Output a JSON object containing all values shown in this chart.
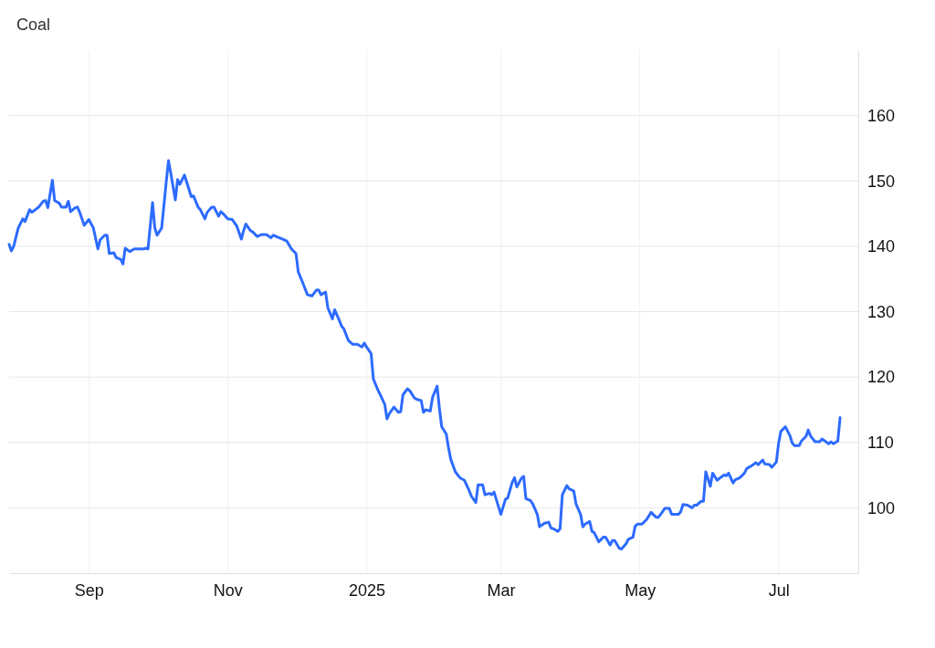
{
  "chart_data": {
    "type": "line",
    "title": "Coal",
    "x": [
      "2024-07-28",
      "2024-07-29",
      "2024-07-30",
      "2024-08-01",
      "2024-08-03",
      "2024-08-04",
      "2024-08-06",
      "2024-08-07",
      "2024-08-10",
      "2024-08-12",
      "2024-08-13",
      "2024-08-14",
      "2024-08-16",
      "2024-08-17",
      "2024-08-19",
      "2024-08-20",
      "2024-08-22",
      "2024-08-23",
      "2024-08-24",
      "2024-08-26",
      "2024-08-27",
      "2024-08-28",
      "2024-08-30",
      "2024-09-01",
      "2024-09-03",
      "2024-09-05",
      "2024-09-06",
      "2024-09-08",
      "2024-09-09",
      "2024-09-10",
      "2024-09-12",
      "2024-09-13",
      "2024-09-15",
      "2024-09-16",
      "2024-09-17",
      "2024-09-19",
      "2024-09-21",
      "2024-09-25",
      "2024-09-26",
      "2024-09-27",
      "2024-09-29",
      "2024-09-30",
      "2024-10-01",
      "2024-10-03",
      "2024-10-05",
      "2024-10-06",
      "2024-10-07",
      "2024-10-09",
      "2024-10-10",
      "2024-10-11",
      "2024-10-13",
      "2024-10-15",
      "2024-10-16",
      "2024-10-17",
      "2024-10-19",
      "2024-10-20",
      "2024-10-22",
      "2024-10-23",
      "2024-10-25",
      "2024-10-26",
      "2024-10-28",
      "2024-10-29",
      "2024-10-30",
      "2024-11-01",
      "2024-11-03",
      "2024-11-05",
      "2024-11-07",
      "2024-11-08",
      "2024-11-09",
      "2024-11-11",
      "2024-11-12",
      "2024-11-14",
      "2024-11-16",
      "2024-11-18",
      "2024-11-20",
      "2024-11-21",
      "2024-11-23",
      "2024-11-25",
      "2024-11-27",
      "2024-11-29",
      "2024-12-01",
      "2024-12-02",
      "2024-12-04",
      "2024-12-06",
      "2024-12-08",
      "2024-12-10",
      "2024-12-11",
      "2024-12-12",
      "2024-12-14",
      "2024-12-15",
      "2024-12-17",
      "2024-12-18",
      "2024-12-20",
      "2024-12-21",
      "2024-12-22",
      "2024-12-24",
      "2024-12-26",
      "2024-12-28",
      "2024-12-30",
      "2024-12-31",
      "2025-01-01",
      "2025-01-03",
      "2025-01-04",
      "2025-01-06",
      "2025-01-07",
      "2025-01-09",
      "2025-01-10",
      "2025-01-11",
      "2025-01-13",
      "2025-01-15",
      "2025-01-16",
      "2025-01-17",
      "2025-01-19",
      "2025-01-20",
      "2025-01-22",
      "2025-01-23",
      "2025-01-25",
      "2025-01-26",
      "2025-01-27",
      "2025-01-29",
      "2025-01-30",
      "2025-02-01",
      "2025-02-02",
      "2025-02-03",
      "2025-02-05",
      "2025-02-06",
      "2025-02-07",
      "2025-02-09",
      "2025-02-11",
      "2025-02-13",
      "2025-02-15",
      "2025-02-16",
      "2025-02-18",
      "2025-02-19",
      "2025-02-21",
      "2025-02-22",
      "2025-02-24",
      "2025-02-25",
      "2025-02-26",
      "2025-02-28",
      "2025-03-01",
      "2025-03-03",
      "2025-03-04",
      "2025-03-06",
      "2025-03-07",
      "2025-03-08",
      "2025-03-10",
      "2025-03-11",
      "2025-03-12",
      "2025-03-14",
      "2025-03-15",
      "2025-03-17",
      "2025-03-18",
      "2025-03-20",
      "2025-03-22",
      "2025-03-23",
      "2025-03-24",
      "2025-03-26",
      "2025-03-27",
      "2025-03-28",
      "2025-03-30",
      "2025-03-31",
      "2025-04-02",
      "2025-04-03",
      "2025-04-05",
      "2025-04-06",
      "2025-04-07",
      "2025-04-09",
      "2025-04-10",
      "2025-04-11",
      "2025-04-13",
      "2025-04-15",
      "2025-04-16",
      "2025-04-18",
      "2025-04-19",
      "2025-04-20",
      "2025-04-22",
      "2025-04-23",
      "2025-04-25",
      "2025-04-26",
      "2025-04-28",
      "2025-04-29",
      "2025-04-30",
      "2025-05-02",
      "2025-05-04",
      "2025-05-06",
      "2025-05-08",
      "2025-05-09",
      "2025-05-10",
      "2025-05-12",
      "2025-05-14",
      "2025-05-15",
      "2025-05-18",
      "2025-05-19",
      "2025-05-20",
      "2025-05-22",
      "2025-05-24",
      "2025-05-25",
      "2025-05-26",
      "2025-05-28",
      "2025-05-29",
      "2025-05-30",
      "2025-06-01",
      "2025-06-02",
      "2025-06-04",
      "2025-06-05",
      "2025-06-07",
      "2025-06-08",
      "2025-06-09",
      "2025-06-11",
      "2025-06-12",
      "2025-06-14",
      "2025-06-16",
      "2025-06-17",
      "2025-06-19",
      "2025-06-21",
      "2025-06-22",
      "2025-06-24",
      "2025-06-25",
      "2025-06-27",
      "2025-06-28",
      "2025-06-30",
      "2025-07-01",
      "2025-07-02",
      "2025-07-04",
      "2025-07-06",
      "2025-07-07",
      "2025-07-08",
      "2025-07-10",
      "2025-07-11",
      "2025-07-13",
      "2025-07-14",
      "2025-07-15",
      "2025-07-17",
      "2025-07-19",
      "2025-07-20",
      "2025-07-21",
      "2025-07-23",
      "2025-07-24",
      "2025-07-25",
      "2025-07-27",
      "2025-07-28"
    ],
    "series": [
      {
        "color": "#2d6bff",
        "values": [
          140.3,
          139.3,
          140.0,
          142.8,
          144.2,
          143.8,
          145.6,
          145.2,
          146.0,
          146.9,
          147.0,
          145.9,
          150.1,
          147.0,
          146.6,
          146.0,
          146.0,
          146.9,
          145.3,
          145.9,
          146.0,
          145.2,
          143.2,
          144.1,
          142.8,
          139.6,
          141.0,
          141.7,
          141.7,
          138.9,
          139.0,
          138.3,
          138.0,
          137.3,
          139.7,
          139.2,
          139.6,
          139.6,
          139.7,
          139.6,
          146.7,
          142.8,
          141.7,
          142.8,
          149.8,
          153.1,
          151.2,
          147.1,
          150.2,
          149.5,
          150.9,
          148.7,
          147.6,
          147.7,
          146.0,
          145.6,
          144.2,
          145.2,
          146.0,
          146.0,
          144.6,
          145.3,
          145.0,
          144.2,
          144.1,
          143.1,
          141.1,
          142.4,
          143.4,
          142.4,
          142.2,
          141.5,
          141.8,
          141.8,
          141.3,
          141.7,
          141.4,
          141.1,
          140.8,
          139.6,
          138.9,
          136.1,
          134.4,
          132.6,
          132.4,
          133.3,
          133.3,
          132.6,
          133.0,
          130.6,
          128.9,
          130.3,
          128.7,
          127.8,
          127.4,
          125.6,
          125.0,
          125.0,
          124.6,
          125.2,
          124.6,
          123.6,
          119.7,
          118.0,
          117.3,
          115.8,
          113.6,
          114.4,
          115.4,
          114.6,
          114.7,
          117.3,
          118.2,
          117.9,
          116.8,
          116.6,
          116.4,
          114.6,
          115.0,
          114.8,
          116.9,
          118.6,
          115.2,
          112.4,
          111.3,
          109.2,
          107.4,
          105.5,
          104.6,
          104.2,
          102.7,
          101.8,
          100.8,
          103.5,
          103.5,
          102.0,
          102.2,
          102.0,
          102.4,
          100.1,
          99.0,
          101.3,
          101.5,
          103.9,
          104.6,
          103.2,
          104.5,
          104.8,
          101.4,
          101.1,
          100.6,
          99.0,
          97.1,
          97.6,
          97.8,
          96.9,
          96.8,
          96.4,
          96.8,
          102.0,
          103.4,
          102.9,
          102.6,
          100.6,
          99.0,
          97.1,
          97.5,
          97.9,
          96.4,
          96.2,
          94.8,
          95.5,
          95.5,
          94.3,
          95.0,
          95.0,
          93.8,
          93.7,
          94.5,
          95.2,
          95.5,
          97.2,
          97.5,
          97.5,
          98.2,
          99.3,
          98.6,
          98.5,
          98.9,
          99.9,
          99.9,
          99.0,
          99.0,
          99.4,
          100.5,
          100.4,
          100.0,
          100.4,
          100.4,
          101.0,
          101.0,
          105.5,
          103.3,
          105.3,
          104.2,
          104.5,
          105.0,
          104.9,
          105.3,
          103.8,
          104.3,
          104.6,
          105.3,
          106.0,
          106.4,
          106.9,
          106.6,
          107.3,
          106.7,
          106.6,
          106.2,
          107.0,
          109.9,
          111.7,
          112.4,
          111.0,
          109.9,
          109.5,
          109.5,
          110.2,
          110.9,
          111.9,
          111.0,
          110.1,
          110.1,
          110.5,
          110.3,
          109.8,
          110.1,
          109.8,
          110.2,
          113.8
        ]
      }
    ],
    "xlim": [
      "2024-07-28",
      "2025-08-05"
    ],
    "xticks": [
      {
        "value": "2024-09-01",
        "label": "Sep"
      },
      {
        "value": "2024-11-01",
        "label": "Nov"
      },
      {
        "value": "2025-01-01",
        "label": "2025"
      },
      {
        "value": "2025-03-01",
        "label": "Mar"
      },
      {
        "value": "2025-05-01",
        "label": "May"
      },
      {
        "value": "2025-07-01",
        "label": "Jul"
      }
    ],
    "ylim": [
      90,
      170
    ],
    "yticks": [
      100,
      110,
      120,
      130,
      140,
      150,
      160
    ],
    "grid": true
  }
}
